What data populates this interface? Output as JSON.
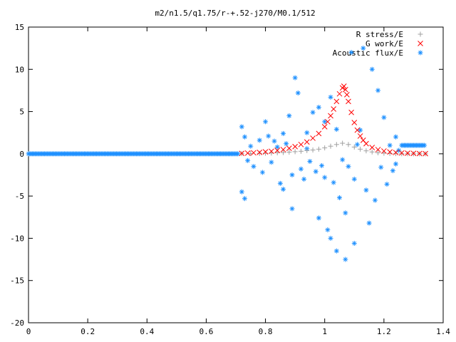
{
  "chart_data": {
    "type": "scatter",
    "title": "m2/n1.5/q1.75/r-+.52-j270/M0.1/512",
    "xlabel": "",
    "ylabel": "",
    "xlim": [
      0,
      1.4
    ],
    "ylim": [
      -20,
      15
    ],
    "xticks": [
      0,
      0.2,
      0.4,
      0.6,
      0.8,
      1,
      1.2,
      1.4
    ],
    "xtick_labels": [
      "0",
      "0.2",
      "0.4",
      "0.6",
      "0.8",
      "1",
      "1.2",
      "1.4"
    ],
    "yticks": [
      -20,
      -15,
      -10,
      -5,
      0,
      5,
      10,
      15
    ],
    "ytick_labels": [
      "-20",
      "-15",
      "-10",
      "-5",
      "0",
      "5",
      "10",
      "15"
    ],
    "grid": false,
    "legend_position": "top-right",
    "series": [
      {
        "name": "R stress/E",
        "marker": "plus",
        "color": "#a0a0a0",
        "x": [
          0.72,
          0.75,
          0.78,
          0.8,
          0.82,
          0.84,
          0.86,
          0.88,
          0.9,
          0.92,
          0.94,
          0.96,
          0.98,
          1.0,
          1.02,
          1.04,
          1.06,
          1.08,
          1.1,
          1.12,
          1.14,
          1.16,
          1.18,
          1.2,
          1.22,
          1.24,
          1.26,
          1.28,
          1.3,
          1.32,
          1.34
        ],
        "y": [
          0.02,
          0.03,
          0.05,
          0.07,
          0.09,
          0.12,
          0.15,
          0.2,
          0.25,
          0.3,
          0.38,
          0.45,
          0.55,
          0.7,
          0.9,
          1.1,
          1.25,
          1.1,
          0.8,
          0.55,
          0.35,
          0.22,
          0.12,
          0.07,
          0.04,
          0.02,
          0.01,
          0.01,
          0.0,
          0.0,
          0.0
        ]
      },
      {
        "name": "G work/E",
        "marker": "cross",
        "color": "#ff0000",
        "x": [
          0.72,
          0.74,
          0.76,
          0.78,
          0.8,
          0.82,
          0.84,
          0.86,
          0.88,
          0.9,
          0.92,
          0.94,
          0.96,
          0.98,
          1.0,
          1.01,
          1.02,
          1.03,
          1.04,
          1.05,
          1.06,
          1.065,
          1.07,
          1.075,
          1.08,
          1.09,
          1.1,
          1.11,
          1.12,
          1.13,
          1.14,
          1.16,
          1.18,
          1.2,
          1.22,
          1.24,
          1.26,
          1.28,
          1.3,
          1.32,
          1.34
        ],
        "y": [
          0.05,
          0.08,
          0.12,
          0.17,
          0.23,
          0.3,
          0.4,
          0.5,
          0.65,
          0.85,
          1.1,
          1.4,
          1.85,
          2.4,
          3.2,
          3.8,
          4.5,
          5.3,
          6.2,
          7.1,
          7.8,
          8.0,
          7.6,
          7.0,
          6.2,
          4.9,
          3.7,
          2.8,
          2.1,
          1.6,
          1.2,
          0.75,
          0.5,
          0.33,
          0.22,
          0.15,
          0.1,
          0.07,
          0.05,
          0.03,
          0.02
        ]
      },
      {
        "name": "Acoustic flux/E",
        "marker": "star",
        "color": "#1e90ff",
        "baseline": {
          "x_start": 0.0,
          "x_end": 0.71,
          "y": 0.0
        },
        "tail": {
          "x_start": 1.26,
          "x_end": 1.34,
          "y": 1.0
        },
        "x": [
          0.72,
          0.72,
          0.73,
          0.73,
          0.74,
          0.75,
          0.76,
          0.78,
          0.79,
          0.8,
          0.81,
          0.82,
          0.83,
          0.84,
          0.85,
          0.86,
          0.86,
          0.87,
          0.88,
          0.89,
          0.89,
          0.9,
          0.91,
          0.92,
          0.93,
          0.94,
          0.94,
          0.95,
          0.96,
          0.97,
          0.98,
          0.98,
          0.99,
          1.0,
          1.0,
          1.01,
          1.02,
          1.02,
          1.03,
          1.04,
          1.04,
          1.05,
          1.06,
          1.07,
          1.07,
          1.08,
          1.09,
          1.1,
          1.1,
          1.11,
          1.12,
          1.13,
          1.14,
          1.15,
          1.16,
          1.17,
          1.18,
          1.19,
          1.2,
          1.21,
          1.22,
          1.23,
          1.24,
          1.24,
          1.25
        ],
        "y": [
          3.2,
          -4.5,
          2.0,
          -5.3,
          -0.8,
          0.9,
          -1.5,
          1.6,
          -2.2,
          3.8,
          2.1,
          -1.0,
          1.5,
          0.8,
          -3.5,
          -4.2,
          2.4,
          1.2,
          4.5,
          -2.5,
          -6.5,
          9.0,
          7.2,
          -1.8,
          -3.0,
          2.5,
          0.6,
          -0.9,
          4.9,
          -2.1,
          5.5,
          -7.6,
          -1.4,
          -2.8,
          3.8,
          -9.0,
          -10.0,
          6.7,
          -3.4,
          2.9,
          -11.5,
          -5.2,
          -0.7,
          -12.5,
          -7.0,
          -1.5,
          12.0,
          -3.0,
          -10.6,
          1.1,
          2.8,
          12.5,
          -4.3,
          -8.2,
          10.0,
          -5.5,
          7.5,
          -1.6,
          4.3,
          -3.6,
          1.0,
          -2.0,
          2.0,
          -1.2,
          0.4
        ]
      }
    ]
  }
}
